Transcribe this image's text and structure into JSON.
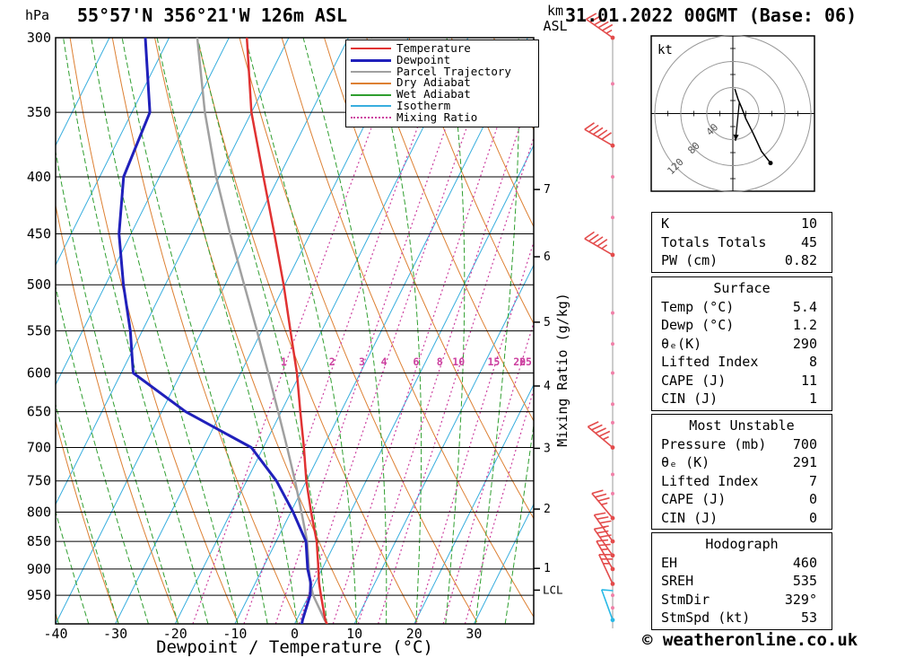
{
  "title": "55°57'N 356°21'W 126m ASL",
  "date_header": "31.01.2022 00GMT (Base: 06)",
  "footer_credit": "© weatheronline.co.uk",
  "axes": {
    "pressure_unit": "hPa",
    "pressure_ticks": [
      300,
      350,
      400,
      450,
      500,
      550,
      600,
      650,
      700,
      750,
      800,
      850,
      900,
      950
    ],
    "x_axis_label": "Dewpoint / Temperature (°C)",
    "x_ticks": [
      -40,
      -30,
      -20,
      -10,
      0,
      10,
      20,
      30
    ],
    "km_unit": "km",
    "km_asl": "ASL",
    "km_ticks": [
      1,
      2,
      3,
      4,
      5,
      6,
      7
    ],
    "mixing_ratio_axis_label": "Mixing Ratio (g/kg)",
    "lcl_label": "LCL"
  },
  "legend": [
    {
      "label": "Temperature",
      "color": "#e03232",
      "style": "solid"
    },
    {
      "label": "Dewpoint",
      "color": "#2020bb",
      "style": "solid"
    },
    {
      "label": "Parcel Trajectory",
      "color": "#a0a0a0",
      "style": "solid"
    },
    {
      "label": "Dry Adiabat",
      "color": "#dd8033",
      "style": "solid"
    },
    {
      "label": "Wet Adiabat",
      "color": "#2f9e2f",
      "style": "solid"
    },
    {
      "label": "Isotherm",
      "color": "#38aede",
      "style": "solid"
    },
    {
      "label": "Mixing Ratio",
      "color": "#cc3f9f",
      "style": "dotted"
    }
  ],
  "colors": {
    "temperature": "#e03232",
    "dewpoint": "#2020bb",
    "parcel": "#a0a0a0",
    "dry_adiabat": "#dd8033",
    "wet_adiabat": "#2f9e2f",
    "isotherm": "#38aede",
    "mixing_ratio": "#cc3f9f",
    "barb": "#e34b4b",
    "barb_dot": "#f080a8",
    "surface_barb": "#29b9e6"
  },
  "chart_data": {
    "type": "line",
    "pressure_top_hpa": 300,
    "pressure_bottom_hpa": 1008,
    "temp_axis_range_c": [
      -40,
      40
    ],
    "isotherm_step_c": 10,
    "dry_adiabat_step_c": 10,
    "wet_adiabat_step_c": 5,
    "mixing_ratio_lines_gkg": [
      1,
      2,
      3,
      4,
      6,
      8,
      10,
      15,
      20,
      25
    ],
    "lcl_pressure_hpa": 940,
    "sounding": {
      "pressure_hpa": [
        1008,
        1000,
        950,
        925,
        900,
        850,
        800,
        750,
        700,
        650,
        600,
        550,
        500,
        450,
        400,
        350,
        300
      ],
      "temperature_c": [
        5.4,
        4.8,
        2.0,
        0.6,
        -0.6,
        -3.2,
        -6.6,
        -10.0,
        -13.2,
        -16.8,
        -20.6,
        -25.2,
        -30.2,
        -36.0,
        -42.6,
        -50.0,
        -57.0
      ],
      "dewpoint_c": [
        1.2,
        1.0,
        0.2,
        -0.8,
        -2.4,
        -5.0,
        -9.6,
        -15.0,
        -22.0,
        -36.0,
        -48.0,
        -52.0,
        -57.0,
        -62.0,
        -66.0,
        -67.0,
        -74.0
      ],
      "parcel_c": [
        5.4,
        4.7,
        0.7,
        -0.9,
        -2.2,
        -4.8,
        -8.2,
        -11.9,
        -16.0,
        -20.5,
        -25.4,
        -30.8,
        -36.8,
        -43.4,
        -50.5,
        -57.8,
        -65.3
      ]
    },
    "wind_barbs": [
      {
        "pressure_hpa": 300,
        "dir_deg": 305,
        "speed_kt": 55
      },
      {
        "pressure_hpa": 375,
        "dir_deg": 300,
        "speed_kt": 50
      },
      {
        "pressure_hpa": 470,
        "dir_deg": 300,
        "speed_kt": 45
      },
      {
        "pressure_hpa": 700,
        "dir_deg": 310,
        "speed_kt": 45
      },
      {
        "pressure_hpa": 810,
        "dir_deg": 320,
        "speed_kt": 35
      },
      {
        "pressure_hpa": 850,
        "dir_deg": 325,
        "speed_kt": 35
      },
      {
        "pressure_hpa": 875,
        "dir_deg": 325,
        "speed_kt": 30
      },
      {
        "pressure_hpa": 900,
        "dir_deg": 330,
        "speed_kt": 25
      },
      {
        "pressure_hpa": 928,
        "dir_deg": 335,
        "speed_kt": 25
      },
      {
        "pressure_hpa": 1000,
        "dir_deg": 340,
        "speed_kt": 10,
        "surface": true
      }
    ],
    "barb_dot_pressures": [
      300,
      330,
      375,
      400,
      435,
      470,
      530,
      565,
      600,
      640,
      665,
      700,
      740,
      770,
      810,
      850,
      875,
      900,
      928,
      950,
      975,
      1000
    ],
    "hodograph": {
      "unit": "kt",
      "rings_kt": [
        40,
        80,
        120
      ],
      "trace_uv_kt": [
        [
          3,
          38
        ],
        [
          8,
          22
        ],
        [
          14,
          8
        ],
        [
          20,
          -8
        ],
        [
          30,
          -28
        ],
        [
          44,
          -58
        ],
        [
          58,
          -76
        ]
      ],
      "storm_motion_uv_kt": [
        [
          10,
          18
        ],
        [
          4,
          -42
        ]
      ]
    }
  },
  "tables": [
    {
      "id": "indices",
      "header": null,
      "rows": [
        [
          "K",
          "10"
        ],
        [
          "Totals Totals",
          "45"
        ],
        [
          "PW (cm)",
          "0.82"
        ]
      ]
    },
    {
      "id": "surface",
      "header": "Surface",
      "rows": [
        [
          "Temp (°C)",
          "5.4"
        ],
        [
          "Dewp (°C)",
          "1.2"
        ],
        [
          "θₑ(K)",
          "290"
        ],
        [
          "Lifted Index",
          "8"
        ],
        [
          "CAPE (J)",
          "11"
        ],
        [
          "CIN (J)",
          "1"
        ]
      ]
    },
    {
      "id": "most-unstable",
      "header": "Most Unstable",
      "rows": [
        [
          "Pressure (mb)",
          "700"
        ],
        [
          "θₑ (K)",
          "291"
        ],
        [
          "Lifted Index",
          "7"
        ],
        [
          "CAPE (J)",
          "0"
        ],
        [
          "CIN (J)",
          "0"
        ]
      ]
    },
    {
      "id": "hodograph",
      "header": "Hodograph",
      "rows": [
        [
          "EH",
          "460"
        ],
        [
          "SREH",
          "535"
        ],
        [
          "StmDir",
          "329°"
        ],
        [
          "StmSpd (kt)",
          "53"
        ]
      ]
    }
  ]
}
